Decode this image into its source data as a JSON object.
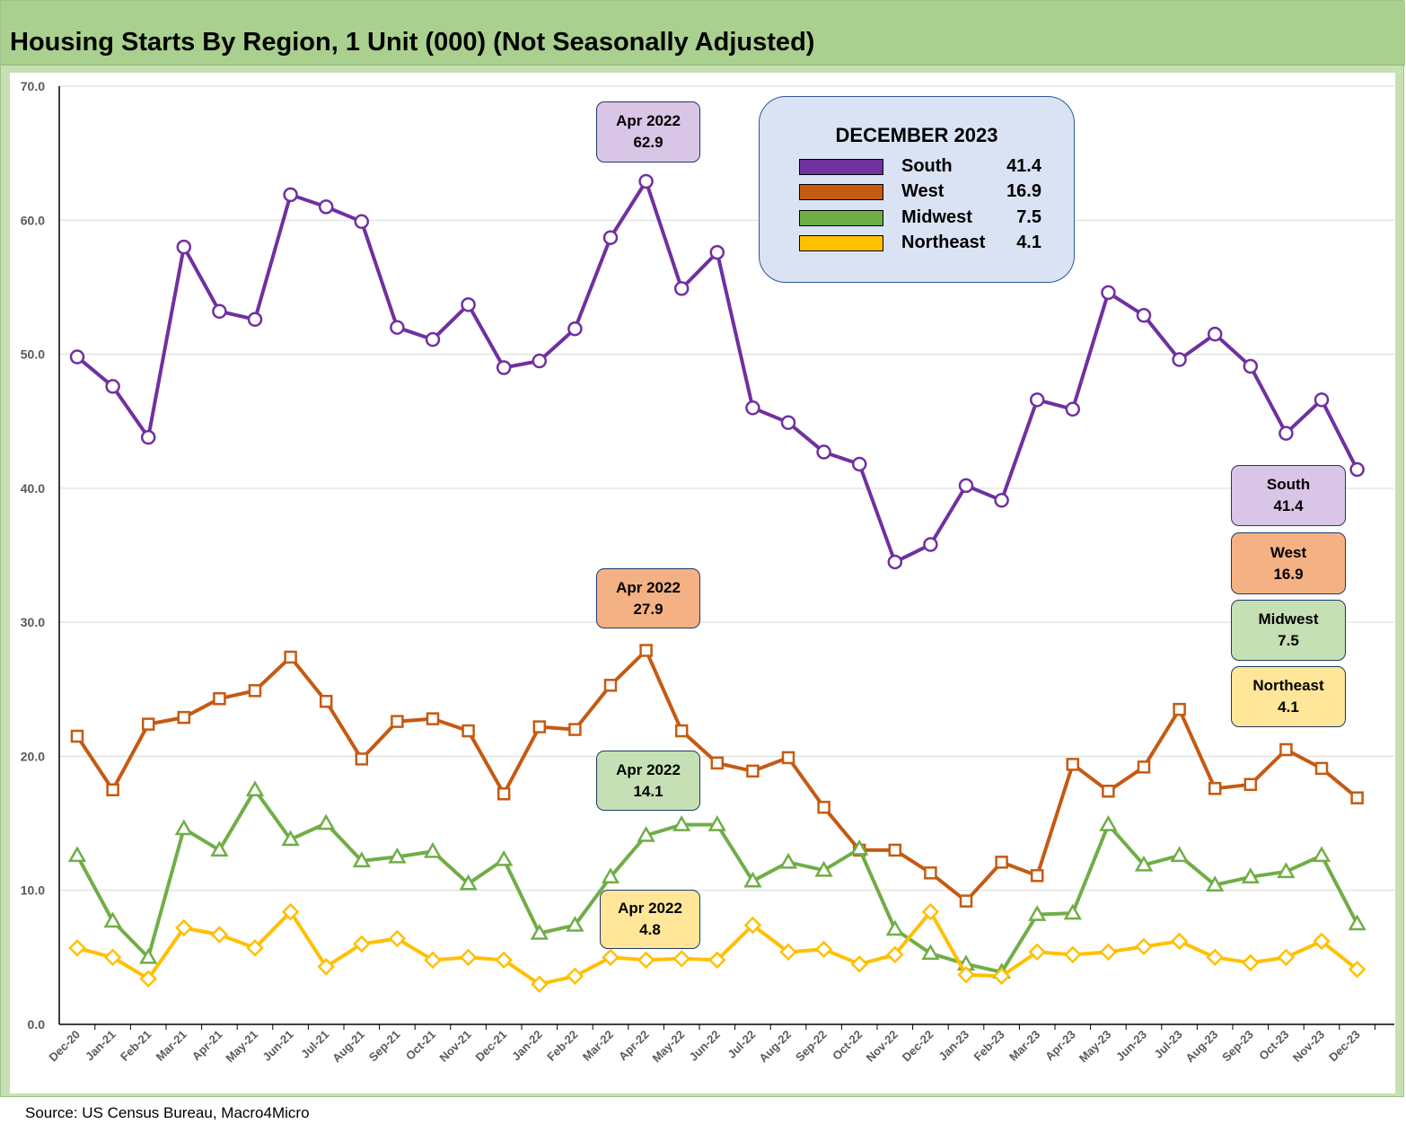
{
  "title": "Housing Starts By Region, 1 Unit (000) (Not Seasonally Adjusted)",
  "source": "Source: US Census Bureau, Macro4Micro",
  "legend": {
    "title": "DECEMBER 2023",
    "items": [
      {
        "name": "South",
        "value": "41.4",
        "color": "#7030a0"
      },
      {
        "name": "West",
        "value": "16.9",
        "color": "#c55a11"
      },
      {
        "name": "Midwest",
        "value": "7.5",
        "color": "#70ad47"
      },
      {
        "name": "Northeast",
        "value": "4.1",
        "color": "#ffc000"
      }
    ]
  },
  "peak_labels": {
    "south": {
      "line1": "Apr 2022",
      "line2": "62.9",
      "fill": "#d9c5e6"
    },
    "west": {
      "line1": "Apr 2022",
      "line2": "27.9",
      "fill": "#f4b183"
    },
    "midwest": {
      "line1": "Apr 2022",
      "line2": "14.1",
      "fill": "#c5e0b4"
    },
    "northeast": {
      "line1": "Apr 2022",
      "line2": "4.8",
      "fill": "#ffe699"
    }
  },
  "end_labels": {
    "south": {
      "line1": "South",
      "line2": "41.4",
      "fill": "#d9c5e6"
    },
    "west": {
      "line1": "West",
      "line2": "16.9",
      "fill": "#f4b183"
    },
    "midwest": {
      "line1": "Midwest",
      "line2": "7.5",
      "fill": "#c5e0b4"
    },
    "northeast": {
      "line1": "Northeast",
      "line2": "4.1",
      "fill": "#ffe699"
    }
  },
  "chart_data": {
    "type": "line",
    "title": "Housing Starts By Region, 1 Unit (000) (Not Seasonally Adjusted)",
    "xlabel": "",
    "ylabel": "",
    "ylim": [
      0,
      70
    ],
    "yticks": [
      "0.0",
      "10.0",
      "20.0",
      "30.0",
      "40.0",
      "50.0",
      "60.0",
      "70.0"
    ],
    "grid": true,
    "legend_position": "top-right",
    "categories": [
      "Dec-20",
      "Jan-21",
      "Feb-21",
      "Mar-21",
      "Apr-21",
      "May-21",
      "Jun-21",
      "Jul-21",
      "Aug-21",
      "Sep-21",
      "Oct-21",
      "Nov-21",
      "Dec-21",
      "Jan-22",
      "Feb-22",
      "Mar-22",
      "Apr-22",
      "May-22",
      "Jun-22",
      "Jul-22",
      "Aug-22",
      "Sep-22",
      "Oct-22",
      "Nov-22",
      "Dec-22",
      "Jan-23",
      "Feb-23",
      "Mar-23",
      "Apr-23",
      "May-23",
      "Jun-23",
      "Jul-23",
      "Aug-23",
      "Sep-23",
      "Oct-23",
      "Nov-23",
      "Dec-23"
    ],
    "series": [
      {
        "name": "South",
        "color": "#7030a0",
        "marker": "circle",
        "values": [
          49.8,
          47.6,
          43.8,
          58.0,
          53.2,
          52.6,
          61.9,
          61.0,
          59.9,
          52.0,
          51.1,
          53.7,
          49.0,
          49.5,
          51.9,
          58.7,
          62.9,
          54.9,
          57.6,
          46.0,
          44.9,
          42.7,
          41.8,
          34.5,
          35.8,
          40.2,
          39.1,
          46.6,
          45.9,
          54.6,
          52.9,
          49.6,
          51.5,
          49.1,
          44.1,
          46.6,
          41.4
        ]
      },
      {
        "name": "West",
        "color": "#c55a11",
        "marker": "square",
        "values": [
          21.5,
          17.5,
          22.4,
          22.9,
          24.3,
          24.9,
          27.4,
          24.1,
          19.8,
          22.6,
          22.8,
          21.9,
          17.2,
          22.2,
          22.0,
          25.3,
          27.9,
          21.9,
          19.5,
          18.9,
          19.9,
          16.2,
          13.0,
          13.0,
          11.3,
          9.2,
          12.1,
          11.1,
          19.4,
          17.4,
          19.2,
          23.5,
          17.6,
          17.9,
          20.5,
          19.1,
          16.9
        ]
      },
      {
        "name": "Midwest",
        "color": "#70ad47",
        "marker": "triangle",
        "values": [
          12.6,
          7.7,
          5.0,
          14.6,
          13.0,
          17.5,
          13.8,
          15.0,
          12.2,
          12.5,
          12.9,
          10.5,
          12.3,
          6.8,
          7.4,
          11.0,
          14.1,
          14.9,
          14.9,
          10.7,
          12.1,
          11.5,
          13.1,
          7.1,
          5.3,
          4.5,
          3.9,
          8.2,
          8.3,
          14.9,
          11.9,
          12.6,
          10.4,
          11.0,
          11.4,
          12.6,
          7.5
        ]
      },
      {
        "name": "Northeast",
        "color": "#ffc000",
        "marker": "diamond",
        "values": [
          5.7,
          5.0,
          3.4,
          7.2,
          6.7,
          5.7,
          8.4,
          4.3,
          6.0,
          6.4,
          4.8,
          5.0,
          4.8,
          3.0,
          3.6,
          5.0,
          4.8,
          4.9,
          4.8,
          7.4,
          5.4,
          5.6,
          4.5,
          5.2,
          8.4,
          3.7,
          3.6,
          5.4,
          5.2,
          5.4,
          5.8,
          6.2,
          5.0,
          4.6,
          5.0,
          6.2,
          4.1
        ]
      }
    ]
  }
}
